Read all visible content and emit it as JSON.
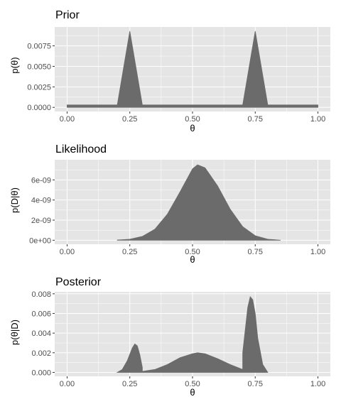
{
  "colors": {
    "panel": "#e5e5e5",
    "grid": "#ffffff",
    "fill": "#6b6b6b",
    "tick_text": "#4d4d4d",
    "text": "#000000"
  },
  "chart_data": [
    {
      "type": "area",
      "title": "Prior",
      "xlabel": "θ",
      "ylabel": "p(θ)",
      "xlim": [
        0,
        1
      ],
      "ylim": [
        -0.0005,
        0.0098
      ],
      "x_ticks": [
        0,
        0.25,
        0.5,
        0.75,
        1
      ],
      "x_tick_labels": [
        "0.00",
        "0.25",
        "0.50",
        "0.75",
        "1.00"
      ],
      "y_ticks": [
        0,
        0.0025,
        0.005,
        0.0075
      ],
      "y_tick_labels": [
        "0.0000",
        "0.0025",
        "0.0050",
        "0.0075"
      ],
      "grid": true,
      "series": [
        {
          "x": [
            0,
            0.2,
            0.25,
            0.3,
            0.7,
            0.75,
            0.8,
            1
          ],
          "y": [
            0.0003,
            0.0003,
            0.0093,
            0.0003,
            0.0003,
            0.0093,
            0.0003,
            0.0003
          ]
        }
      ]
    },
    {
      "type": "area",
      "title": "Likelihood",
      "xlabel": "θ",
      "ylabel": "p(D|θ)",
      "xlim": [
        0,
        1
      ],
      "ylim": [
        -4e-10,
        8e-09
      ],
      "x_ticks": [
        0,
        0.25,
        0.5,
        0.75,
        1
      ],
      "x_tick_labels": [
        "0.00",
        "0.25",
        "0.50",
        "0.75",
        "1.00"
      ],
      "y_ticks": [
        0,
        2e-09,
        4e-09,
        6e-09
      ],
      "y_tick_labels": [
        "0e+00",
        "2e-09",
        "4e-09",
        "6e-09"
      ],
      "grid": true,
      "series": [
        {
          "x": [
            0.2,
            0.25,
            0.3,
            0.35,
            0.4,
            0.45,
            0.5,
            0.52,
            0.55,
            0.6,
            0.65,
            0.7,
            0.75,
            0.8,
            0.85
          ],
          "y": [
            2e-11,
            1e-10,
            3.8e-10,
            1.1e-09,
            2.6e-09,
            4.8e-09,
            7.1e-09,
            7.5e-09,
            7.2e-09,
            5.4e-09,
            3.1e-09,
            1.35e-09,
            4.5e-10,
            1e-10,
            1e-11
          ]
        }
      ]
    },
    {
      "type": "area",
      "title": "Posterior",
      "xlabel": "θ",
      "ylabel": "p(θ|D)",
      "xlim": [
        0,
        1
      ],
      "ylim": [
        -0.0004,
        0.0082
      ],
      "x_ticks": [
        0,
        0.25,
        0.5,
        0.75,
        1
      ],
      "x_tick_labels": [
        "0.00",
        "0.25",
        "0.50",
        "0.75",
        "1.00"
      ],
      "y_ticks": [
        0,
        0.002,
        0.004,
        0.006,
        0.008
      ],
      "y_tick_labels": [
        "0.000",
        "0.002",
        "0.004",
        "0.006",
        "0.008"
      ],
      "grid": true,
      "series": [
        {
          "x": [
            0.2,
            0.22,
            0.24,
            0.26,
            0.27,
            0.28,
            0.29,
            0.3,
            0.3,
            0.35,
            0.4,
            0.45,
            0.5,
            0.52,
            0.55,
            0.6,
            0.65,
            0.7,
            0.7,
            0.72,
            0.73,
            0.74,
            0.75,
            0.76,
            0.78,
            0.8
          ],
          "y": [
            0.0,
            0.0003,
            0.0012,
            0.0025,
            0.0029,
            0.0027,
            0.0018,
            0.0005,
            0.0001,
            0.0003,
            0.0008,
            0.0015,
            0.0019,
            0.002,
            0.0019,
            0.0014,
            0.0008,
            0.0003,
            0.002,
            0.0066,
            0.0077,
            0.0074,
            0.006,
            0.0035,
            0.0008,
            0.0
          ]
        }
      ]
    }
  ]
}
